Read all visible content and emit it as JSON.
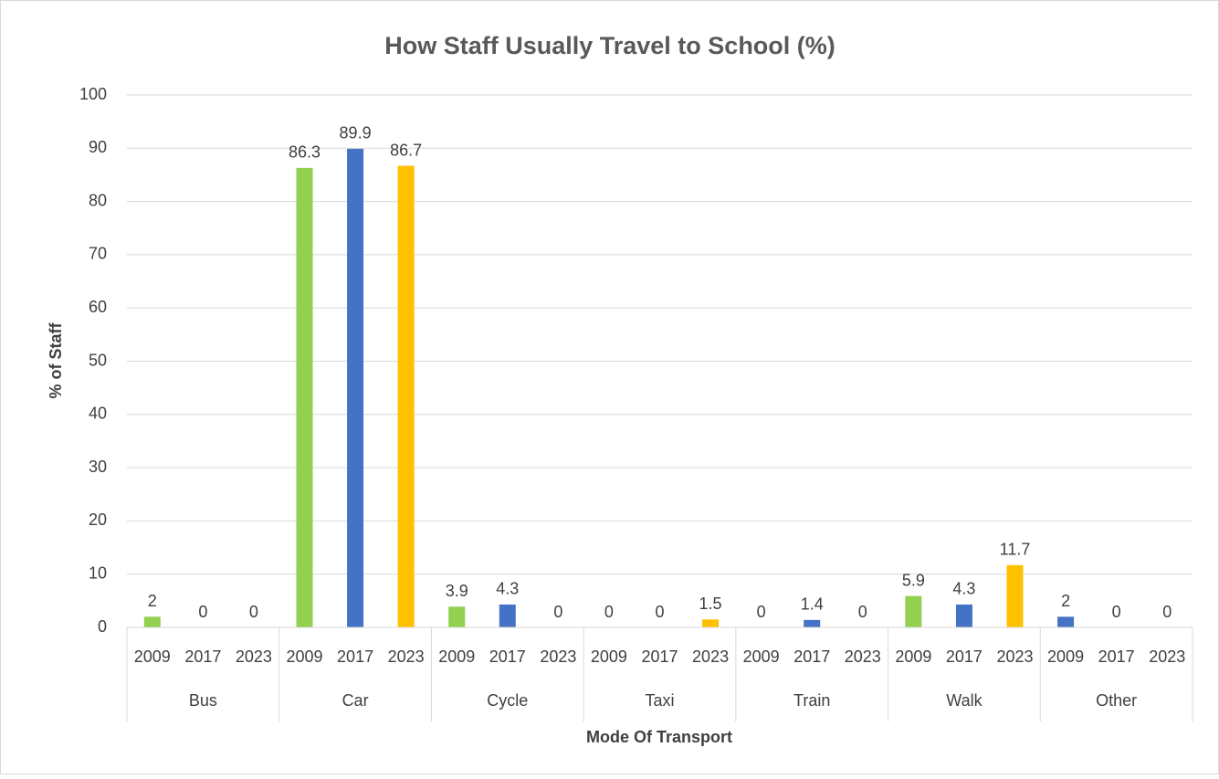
{
  "chart_data": {
    "type": "bar",
    "title": "How Staff Usually Travel to School (%)",
    "x_label": "Mode Of Transport",
    "y_label": "% of Staff",
    "ylim": [
      0,
      100
    ],
    "yticks": [
      0,
      10,
      20,
      30,
      40,
      50,
      60,
      70,
      80,
      90,
      100
    ],
    "grid": true,
    "groups": [
      {
        "name": "Bus",
        "categories": [
          "2009",
          "2017",
          "2023"
        ],
        "values": [
          2,
          0,
          0
        ],
        "colors": [
          "#92d050",
          "#4472c4",
          "#ffc000"
        ]
      },
      {
        "name": "Car",
        "categories": [
          "2009",
          "2017",
          "2023"
        ],
        "values": [
          86.3,
          89.9,
          86.7
        ],
        "colors": [
          "#92d050",
          "#4472c4",
          "#ffc000"
        ]
      },
      {
        "name": "Cycle",
        "categories": [
          "2009",
          "2017",
          "2023"
        ],
        "values": [
          3.9,
          4.3,
          0
        ],
        "colors": [
          "#92d050",
          "#4472c4",
          "#ffc000"
        ]
      },
      {
        "name": "Taxi",
        "categories": [
          "2009",
          "2017",
          "2023"
        ],
        "values": [
          0,
          0,
          1.5
        ],
        "colors": [
          "#92d050",
          "#4472c4",
          "#ffc000"
        ]
      },
      {
        "name": "Train",
        "categories": [
          "2009",
          "2017",
          "2023"
        ],
        "values": [
          0,
          1.4,
          0
        ],
        "colors": [
          "#92d050",
          "#4472c4",
          "#ffc000"
        ]
      },
      {
        "name": "Walk",
        "categories": [
          "2009",
          "2017",
          "2023"
        ],
        "values": [
          5.9,
          4.3,
          11.7
        ],
        "colors": [
          "#92d050",
          "#4472c4",
          "#ffc000"
        ]
      },
      {
        "name": "Other",
        "categories": [
          "2009",
          "2017",
          "2023"
        ],
        "values": [
          2,
          0,
          0
        ],
        "colors": [
          "#4472c4",
          "#4472c4",
          "#ffc000"
        ]
      }
    ]
  }
}
